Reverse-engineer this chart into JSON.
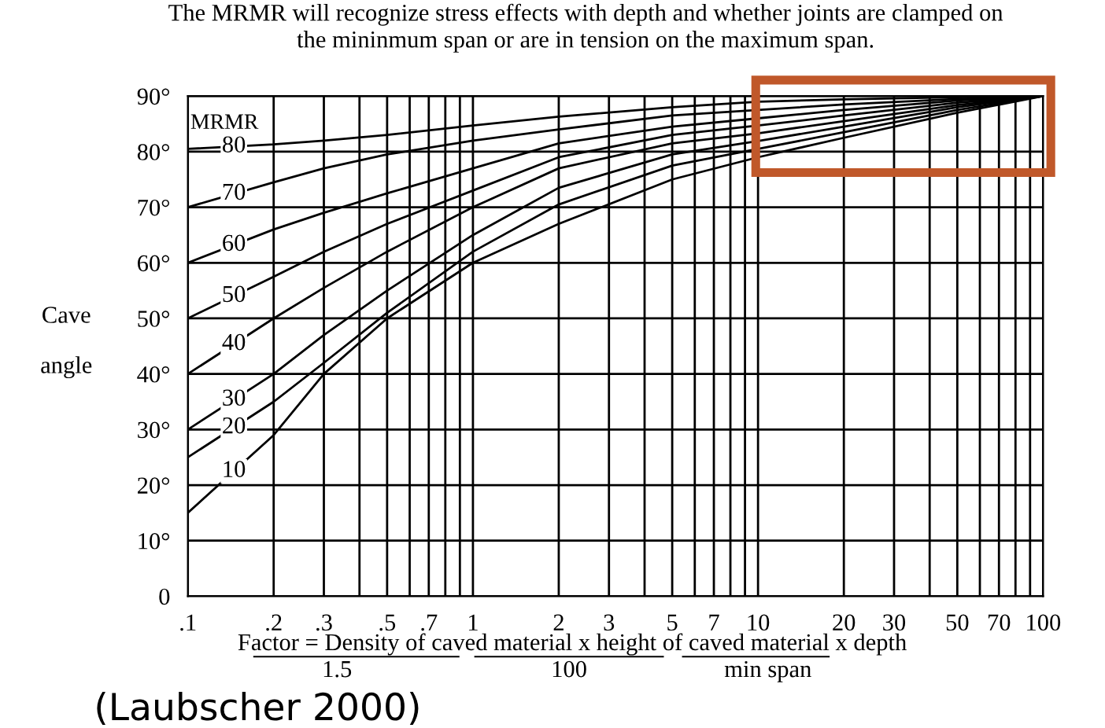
{
  "chart_data": {
    "type": "line",
    "title": "The MRMR will recognize stress effects with depth and whether joints are clamped on\nthe mininmum span or are in tension on the maximum span.",
    "ylabel": "Cave\n\nangle",
    "xlabel": "Factor = Density of caved material x height of caved material x depth",
    "legend_title": "MRMR",
    "annotations": [
      "1.5",
      "100",
      "min span",
      "(Laubscher 2000)"
    ],
    "log": "x",
    "x": [
      0.1,
      0.2,
      0.3,
      0.5,
      1,
      2,
      5,
      10,
      20,
      50,
      100
    ],
    "series": [
      {
        "name": "80",
        "color": "#000000",
        "values": [
          80.5,
          81.3,
          82,
          83,
          84.7,
          86.3,
          88,
          89,
          89.4,
          89.8,
          90
        ]
      },
      {
        "name": "70",
        "color": "#000000",
        "values": [
          70,
          74.5,
          77,
          79.5,
          82,
          84,
          86.5,
          87.5,
          88.5,
          89.5,
          90
        ]
      },
      {
        "name": "60",
        "color": "#000000",
        "values": [
          60,
          66,
          69,
          72.5,
          77,
          81.5,
          84.5,
          86,
          87.5,
          89.2,
          90
        ]
      },
      {
        "name": "50",
        "color": "#000000",
        "values": [
          50,
          57.5,
          62,
          67,
          73,
          79,
          83,
          84.7,
          86.5,
          88.8,
          90
        ]
      },
      {
        "name": "40",
        "color": "#000000",
        "values": [
          40,
          50,
          55.5,
          62,
          70,
          77,
          81.5,
          83.3,
          85.5,
          88.4,
          90
        ]
      },
      {
        "name": "30",
        "color": "#000000",
        "values": [
          30,
          40,
          47,
          55,
          65,
          73.5,
          79.5,
          81.9,
          84.5,
          88,
          90
        ]
      },
      {
        "name": "20",
        "color": "#000000",
        "values": [
          25,
          35,
          42,
          51,
          62,
          70.5,
          77.5,
          80.5,
          83.5,
          87.5,
          90
        ]
      },
      {
        "name": "10",
        "color": "#000000",
        "values": [
          15,
          29,
          40,
          50,
          60,
          67,
          75,
          79,
          82.5,
          87,
          90
        ]
      }
    ],
    "xlim": [
      0.1,
      100
    ],
    "ylim": [
      0,
      90
    ],
    "xticks": [
      {
        "value": 0.1,
        "label": ".1"
      },
      {
        "value": 0.2,
        "label": ".2"
      },
      {
        "value": 0.3,
        "label": ".3"
      },
      {
        "value": 0.4,
        "label": null
      },
      {
        "value": 0.5,
        "label": ".5"
      },
      {
        "value": 0.6,
        "label": null
      },
      {
        "value": 0.7,
        "label": ".7"
      },
      {
        "value": 0.8,
        "label": null
      },
      {
        "value": 0.9,
        "label": null
      },
      1,
      2,
      3,
      {
        "value": 4,
        "label": null
      },
      5,
      {
        "value": 6,
        "label": null
      },
      7,
      {
        "value": 8,
        "label": null
      },
      {
        "value": 9,
        "label": null
      },
      10,
      20,
      30,
      {
        "value": 40,
        "label": null
      },
      50,
      {
        "value": 60,
        "label": null
      },
      70,
      {
        "value": 80,
        "label": null
      },
      {
        "value": 90,
        "label": null
      },
      100
    ],
    "yticks": [
      0,
      {
        "value": 10,
        "label": "10°"
      },
      {
        "value": 20,
        "label": "20°"
      },
      {
        "value": 30,
        "label": "30°"
      },
      {
        "value": 40,
        "label": "40°"
      },
      {
        "value": 50,
        "label": "50°"
      },
      {
        "value": 60,
        "label": "60°"
      },
      {
        "value": 70,
        "label": "70°"
      },
      {
        "value": 80,
        "label": "80°"
      },
      {
        "value": 90,
        "label": "90°"
      }
    ],
    "grid": true,
    "legend": false,
    "marker": "none",
    "line_style": "solid"
  }
}
